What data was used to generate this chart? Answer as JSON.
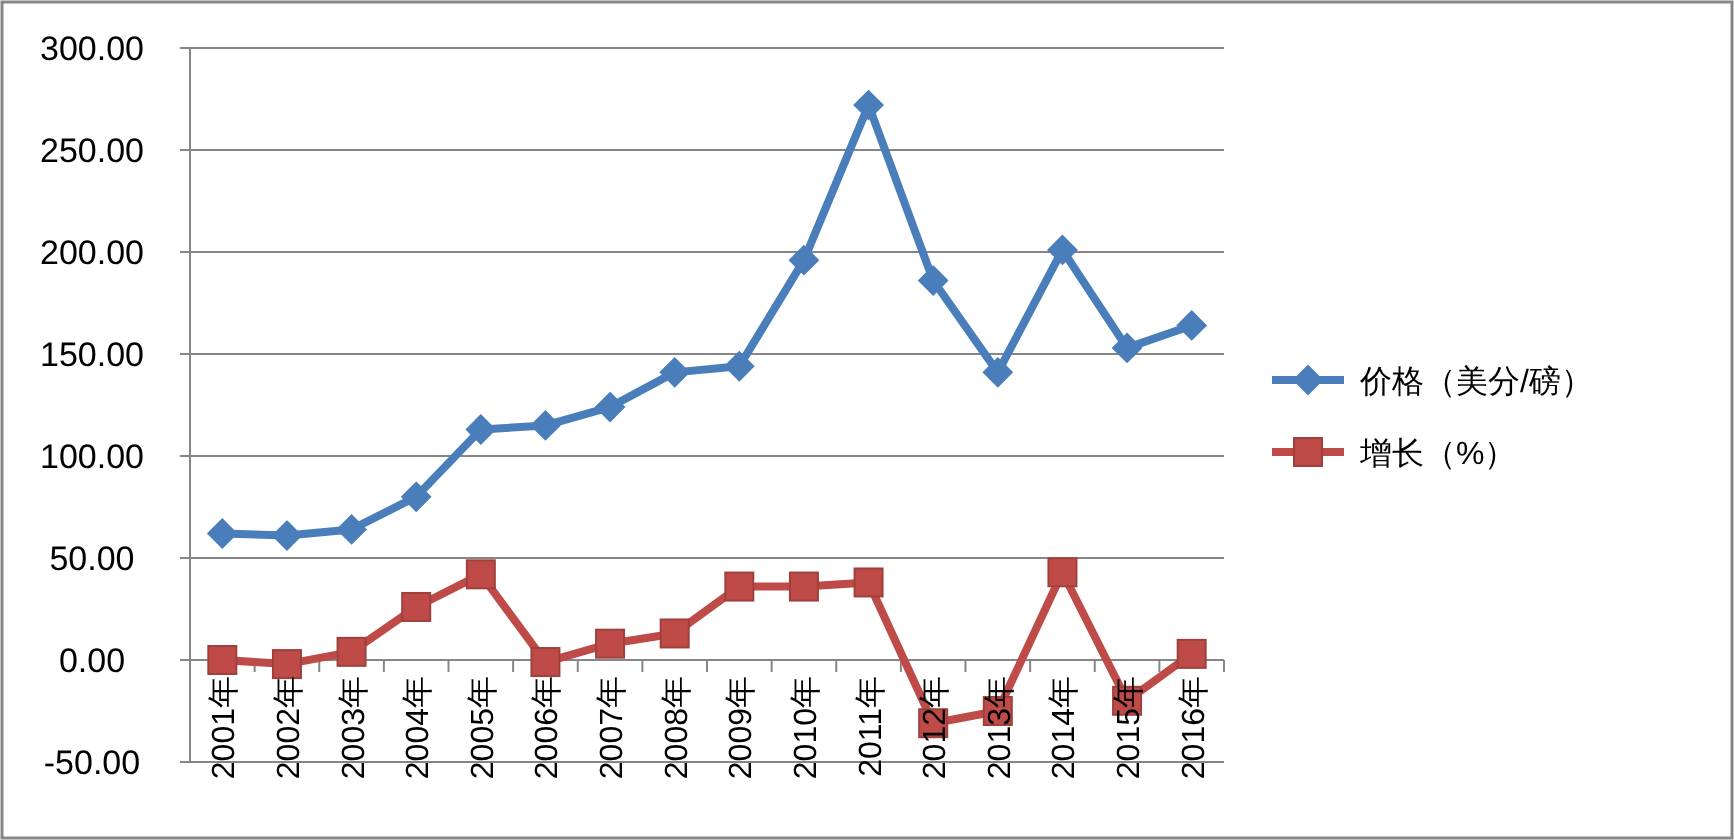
{
  "chart_data": {
    "type": "line",
    "categories": [
      "2001年",
      "2002年",
      "2003年",
      "2004年",
      "2005年",
      "2006年",
      "2007年",
      "2008年",
      "2009年",
      "2010年",
      "2011年",
      "2012年",
      "2013年",
      "2014年",
      "2015年",
      "2016年"
    ],
    "series": [
      {
        "name": "价格（美分/磅）",
        "color": "#4a7ebb",
        "marker": "diamond",
        "values": [
          62,
          61,
          64,
          80,
          113,
          115,
          124,
          141,
          144,
          196,
          272,
          186,
          141,
          201,
          153,
          164
        ]
      },
      {
        "name": "增长（%）",
        "color": "#be4b48",
        "marker": "square",
        "values": [
          0,
          -2,
          4,
          26,
          42,
          -1,
          8,
          13,
          36,
          36,
          38,
          -31,
          -25,
          43,
          -20,
          3
        ]
      }
    ],
    "ylim": [
      -50,
      300
    ],
    "yticks": [
      {
        "value": -50,
        "label": "-50.00"
      },
      {
        "value": 0,
        "label": "0.00"
      },
      {
        "value": 50,
        "label": "50.00"
      },
      {
        "value": 100,
        "label": "100.00"
      },
      {
        "value": 150,
        "label": "150.00"
      },
      {
        "value": 200,
        "label": "200.00"
      },
      {
        "value": 250,
        "label": "250.00"
      },
      {
        "value": 300,
        "label": "300.00"
      }
    ],
    "grid": "y",
    "legend": "right"
  }
}
